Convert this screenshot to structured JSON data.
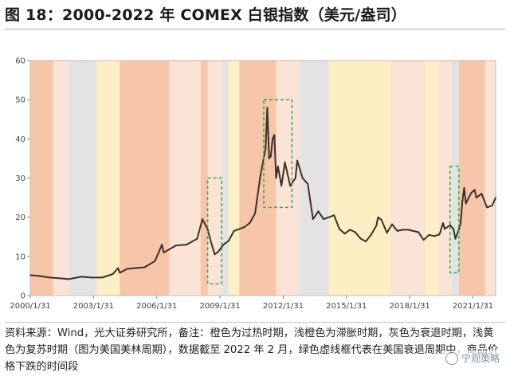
{
  "title": "图 18：2000-2022 年 COMEX 白银指数（美元/盎司）",
  "source_note": "资料来源：Wind，光大证券研究所，备注：橙色为过热时期，浅橙色为滞胀时期，灰色为衰退时期，浅黄色为复苏时期（图为美国美林周期），数据截至 2022 年 2 月，绿色虚线框代表在美国衰退周期中，商品价格下跌的时间段",
  "watermark": "宁观策略",
  "colors": {
    "line": "#3b2f2a",
    "overheat": "#f7c6a8",
    "stagflation": "#fbe3d6",
    "recession": "#e3e3e3",
    "recovery": "#fdefc4",
    "green_box": "#2fb34a"
  },
  "chart_data": {
    "type": "line",
    "title": "",
    "xlabel": "",
    "ylabel": "",
    "ylim": [
      0,
      60
    ],
    "yticks": [
      0,
      10,
      20,
      30,
      40,
      50,
      60
    ],
    "xticks": [
      "2000/1/31",
      "2003/1/31",
      "2006/1/31",
      "2009/1/31",
      "2012/1/31",
      "2015/1/31",
      "2018/1/31",
      "2021/1/31"
    ],
    "xlim": [
      "2000-01-31",
      "2022-02-28"
    ],
    "phases": [
      {
        "start": "2000-01-31",
        "end": "2001-02-28",
        "phase": "overheat"
      },
      {
        "start": "2001-02-28",
        "end": "2001-11-30",
        "phase": "stagflation"
      },
      {
        "start": "2001-11-30",
        "end": "2003-03-31",
        "phase": "recession"
      },
      {
        "start": "2003-03-31",
        "end": "2004-04-30",
        "phase": "recovery"
      },
      {
        "start": "2004-04-30",
        "end": "2006-08-31",
        "phase": "overheat"
      },
      {
        "start": "2006-08-31",
        "end": "2008-02-29",
        "phase": "stagflation"
      },
      {
        "start": "2008-02-29",
        "end": "2008-06-30",
        "phase": "overheat"
      },
      {
        "start": "2008-06-30",
        "end": "2009-02-28",
        "phase": "stagflation"
      },
      {
        "start": "2009-02-28",
        "end": "2009-06-30",
        "phase": "recession"
      },
      {
        "start": "2009-06-30",
        "end": "2009-12-31",
        "phase": "recovery"
      },
      {
        "start": "2009-12-31",
        "end": "2011-09-30",
        "phase": "overheat"
      },
      {
        "start": "2011-09-30",
        "end": "2012-10-31",
        "phase": "stagflation"
      },
      {
        "start": "2012-10-31",
        "end": "2014-03-31",
        "phase": "recession"
      },
      {
        "start": "2014-03-31",
        "end": "2017-02-28",
        "phase": "recovery"
      },
      {
        "start": "2017-02-28",
        "end": "2018-10-31",
        "phase": "stagflation"
      },
      {
        "start": "2018-10-31",
        "end": "2019-05-31",
        "phase": "recovery"
      },
      {
        "start": "2019-05-31",
        "end": "2020-01-31",
        "phase": "stagflation"
      },
      {
        "start": "2020-01-31",
        "end": "2020-05-31",
        "phase": "recession"
      },
      {
        "start": "2020-05-31",
        "end": "2021-08-31",
        "phase": "overheat"
      },
      {
        "start": "2021-08-31",
        "end": "2022-02-28",
        "phase": "stagflation"
      }
    ],
    "decline_boxes": [
      {
        "start": "2008-06-30",
        "end": "2009-02-28",
        "y_top": 30,
        "y_bottom": 3
      },
      {
        "start": "2011-02-28",
        "end": "2012-06-30",
        "y_top": 50,
        "y_bottom": 22.5
      },
      {
        "start": "2019-12-31",
        "end": "2020-05-31",
        "y_top": 33,
        "y_bottom": 5.8
      }
    ],
    "series": [
      {
        "x": [
          "2000-01-31",
          "2000-06-30",
          "2000-12-31",
          "2001-06-30",
          "2001-11-30",
          "2002-06-30",
          "2002-12-31",
          "2003-06-30",
          "2003-12-31",
          "2004-03-31",
          "2004-04-30",
          "2004-08-31",
          "2004-12-31",
          "2005-06-30",
          "2005-12-31",
          "2006-04-30",
          "2006-05-31",
          "2006-07-31",
          "2006-12-31",
          "2007-06-30",
          "2007-12-31",
          "2008-03-31",
          "2008-06-30",
          "2008-08-31",
          "2008-10-31",
          "2008-12-31",
          "2009-03-31",
          "2009-06-30",
          "2009-09-30",
          "2009-12-31",
          "2010-03-31",
          "2010-06-30",
          "2010-09-30",
          "2010-12-31",
          "2011-03-31",
          "2011-04-30",
          "2011-05-31",
          "2011-06-30",
          "2011-07-31",
          "2011-08-31",
          "2011-09-30",
          "2011-10-31",
          "2011-12-31",
          "2012-02-29",
          "2012-05-31",
          "2012-08-31",
          "2012-09-30",
          "2012-12-31",
          "2013-03-31",
          "2013-06-30",
          "2013-09-30",
          "2013-12-31",
          "2014-03-31",
          "2014-06-30",
          "2014-09-30",
          "2014-12-31",
          "2015-03-31",
          "2015-06-30",
          "2015-09-30",
          "2015-12-31",
          "2016-03-31",
          "2016-06-30",
          "2016-07-31",
          "2016-09-30",
          "2016-12-31",
          "2017-03-31",
          "2017-06-30",
          "2017-09-30",
          "2017-12-31",
          "2018-03-31",
          "2018-06-30",
          "2018-09-30",
          "2018-12-31",
          "2019-03-31",
          "2019-06-30",
          "2019-08-31",
          "2019-09-30",
          "2019-12-31",
          "2020-02-29",
          "2020-03-31",
          "2020-05-31",
          "2020-06-30",
          "2020-07-31",
          "2020-08-31",
          "2020-09-30",
          "2020-12-31",
          "2021-02-28",
          "2021-03-31",
          "2021-06-30",
          "2021-09-30",
          "2021-12-31",
          "2022-02-28"
        ],
        "values": [
          5.2,
          5.0,
          4.6,
          4.4,
          4.2,
          4.8,
          4.6,
          4.6,
          5.5,
          7.0,
          5.8,
          6.8,
          7.0,
          7.2,
          8.8,
          13.0,
          11.0,
          11.5,
          12.8,
          13.0,
          14.5,
          19.5,
          17.0,
          13.5,
          10.5,
          11.2,
          13.0,
          14.0,
          16.5,
          17.0,
          17.5,
          18.5,
          21.0,
          30.5,
          37.5,
          48.0,
          35.0,
          35.5,
          40.0,
          41.0,
          30.0,
          33.0,
          28.0,
          34.0,
          28.0,
          30.0,
          34.5,
          30.0,
          28.5,
          19.5,
          21.5,
          19.5,
          20.0,
          20.5,
          17.0,
          15.8,
          16.8,
          16.2,
          14.6,
          13.8,
          15.5,
          17.8,
          20.0,
          19.3,
          16.0,
          18.2,
          16.5,
          16.8,
          16.8,
          16.5,
          16.2,
          14.2,
          15.5,
          15.2,
          15.6,
          18.5,
          17.0,
          18.0,
          17.0,
          14.5,
          16.8,
          18.5,
          24.0,
          27.5,
          23.5,
          26.2,
          27.0,
          25.0,
          26.0,
          22.5,
          23.0,
          25.0
        ]
      }
    ]
  }
}
